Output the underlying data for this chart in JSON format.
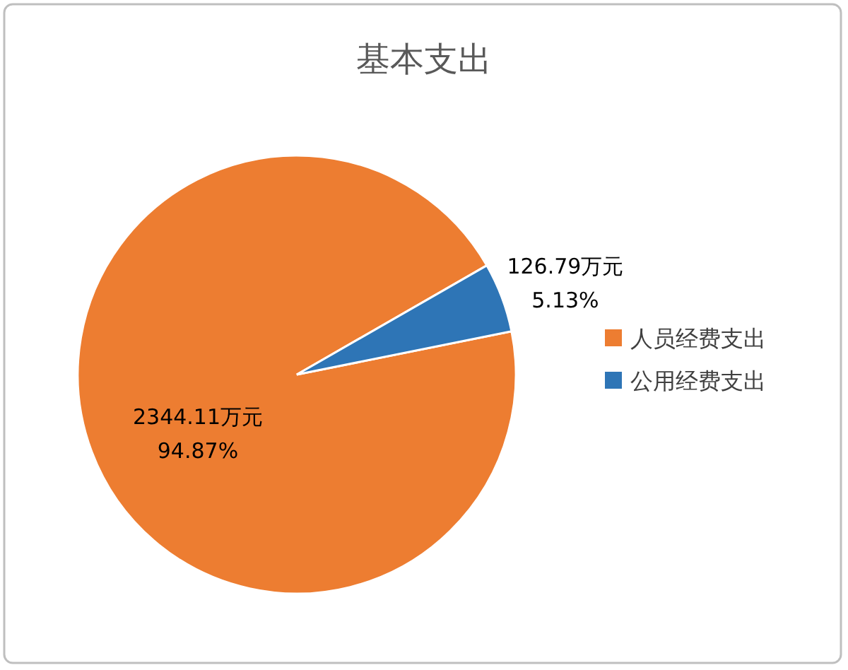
{
  "chart_data": {
    "type": "pie",
    "title": "基本支出",
    "categories": [
      "人员经费支出",
      "公用经费支出"
    ],
    "values": [
      2344.11,
      126.79
    ],
    "colors": [
      "#ed7d31",
      "#2e75b6"
    ],
    "value_labels": [
      "2344.11万元 94.87%",
      "126.79万元 5.13%"
    ],
    "legend": "right"
  }
}
